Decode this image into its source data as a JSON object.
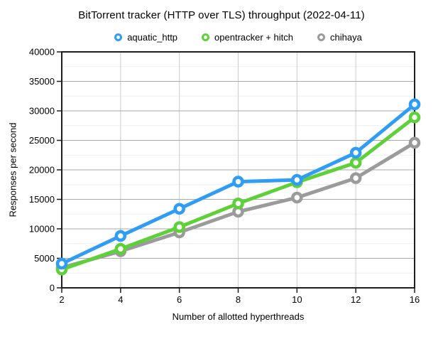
{
  "page": {
    "background": "#ffffff"
  },
  "chart_data": {
    "type": "line",
    "title": "BitTorrent tracker (HTTP over TLS) throughput (2022-04-11)",
    "xlabel": "Number of allotted hyperthreads",
    "ylabel": "Responses per second",
    "categories": [
      "2",
      "4",
      "6",
      "8",
      "10",
      "12",
      "16"
    ],
    "y_axis": {
      "min": 0,
      "max": 40000,
      "major_step": 5000,
      "minor_step": 2500,
      "tick_labels": [
        "0",
        "5000",
        "10000",
        "15000",
        "20000",
        "25000",
        "30000",
        "35000",
        "40000"
      ]
    },
    "legend_position": "top",
    "grid": {
      "major_color": "#a9a9a9",
      "minor_color": "#ededed",
      "vertical_color": "#cccccc",
      "frame_color": "#1d1d1d"
    },
    "series": [
      {
        "name": "aquatic_http",
        "color": "#2F9DF5",
        "values": [
          4100,
          8800,
          13400,
          18000,
          18300,
          22900,
          31100
        ]
      },
      {
        "name": "opentracker + hitch",
        "color": "#5ED13A",
        "values": [
          3100,
          6600,
          10300,
          14300,
          17900,
          21200,
          28900
        ]
      },
      {
        "name": "chihaya",
        "color": "#9B9B9B",
        "values": [
          3400,
          6200,
          9400,
          12900,
          15300,
          18600,
          24600
        ]
      }
    ]
  }
}
